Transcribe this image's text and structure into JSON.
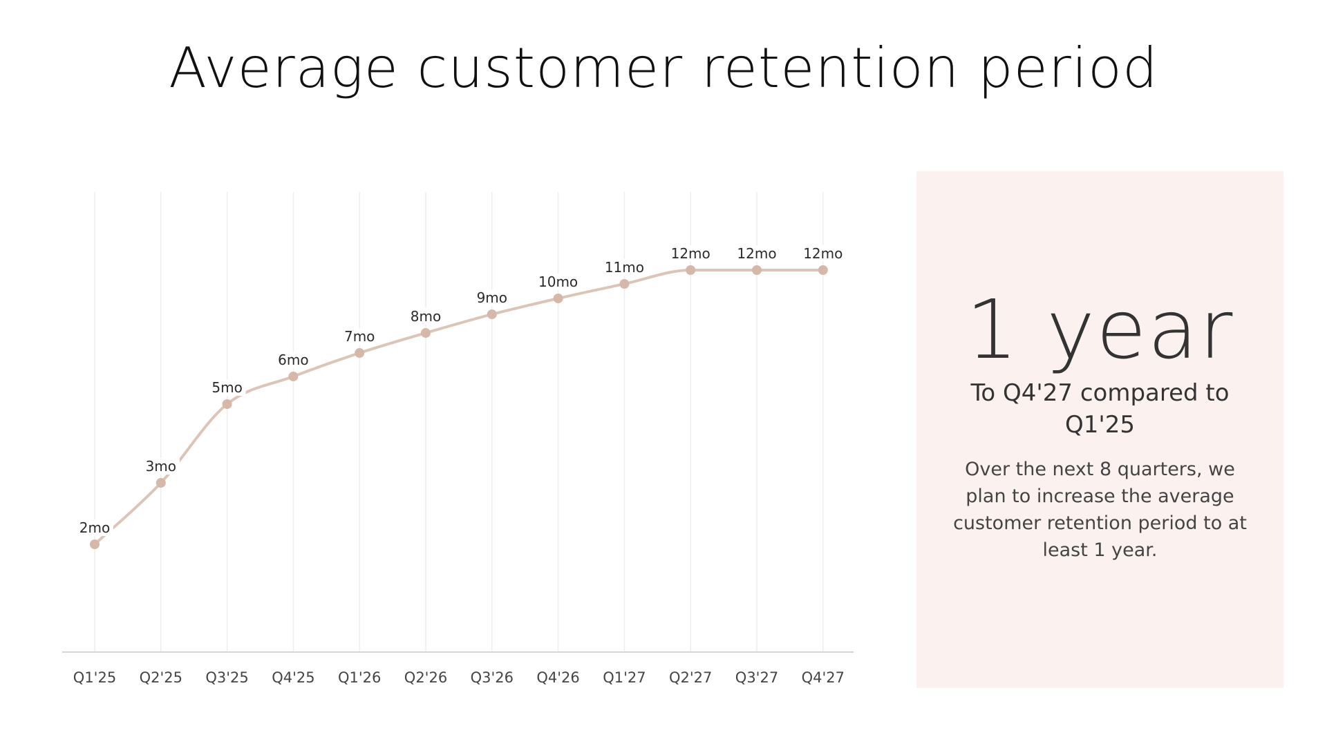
{
  "title": "Average customer retention period",
  "colors": {
    "line": "#dcc4b6",
    "point": "#d5b8a8",
    "grid": "#eeeeee",
    "axis": "#d6d6d6",
    "panel_bg": "#fbf2ef",
    "text": "#333333"
  },
  "chart_data": {
    "type": "line",
    "title": "",
    "xlabel": "",
    "ylabel": "",
    "categories": [
      "Q1'25",
      "Q2'25",
      "Q3'25",
      "Q4'25",
      "Q1'26",
      "Q2'26",
      "Q3'26",
      "Q4'26",
      "Q1'27",
      "Q2'27",
      "Q3'27",
      "Q4'27"
    ],
    "series": [
      {
        "values": [
          2,
          3,
          5,
          6,
          7,
          8,
          9,
          10,
          11,
          12,
          12,
          12
        ],
        "labels": [
          "2mo",
          "3mo",
          "5mo",
          "6mo",
          "7mo",
          "8mo",
          "9mo",
          "10mo",
          "11mo",
          "12mo",
          "12mo",
          "12mo"
        ]
      }
    ],
    "grid": true,
    "y_axis_visible": false,
    "smooth": true
  },
  "panel": {
    "big_number": "1 year",
    "subheading": "To Q4'27 compared to Q1'25",
    "body": "Over the next 8 quarters, we plan to increase the average customer retention period to at least 1 year."
  }
}
